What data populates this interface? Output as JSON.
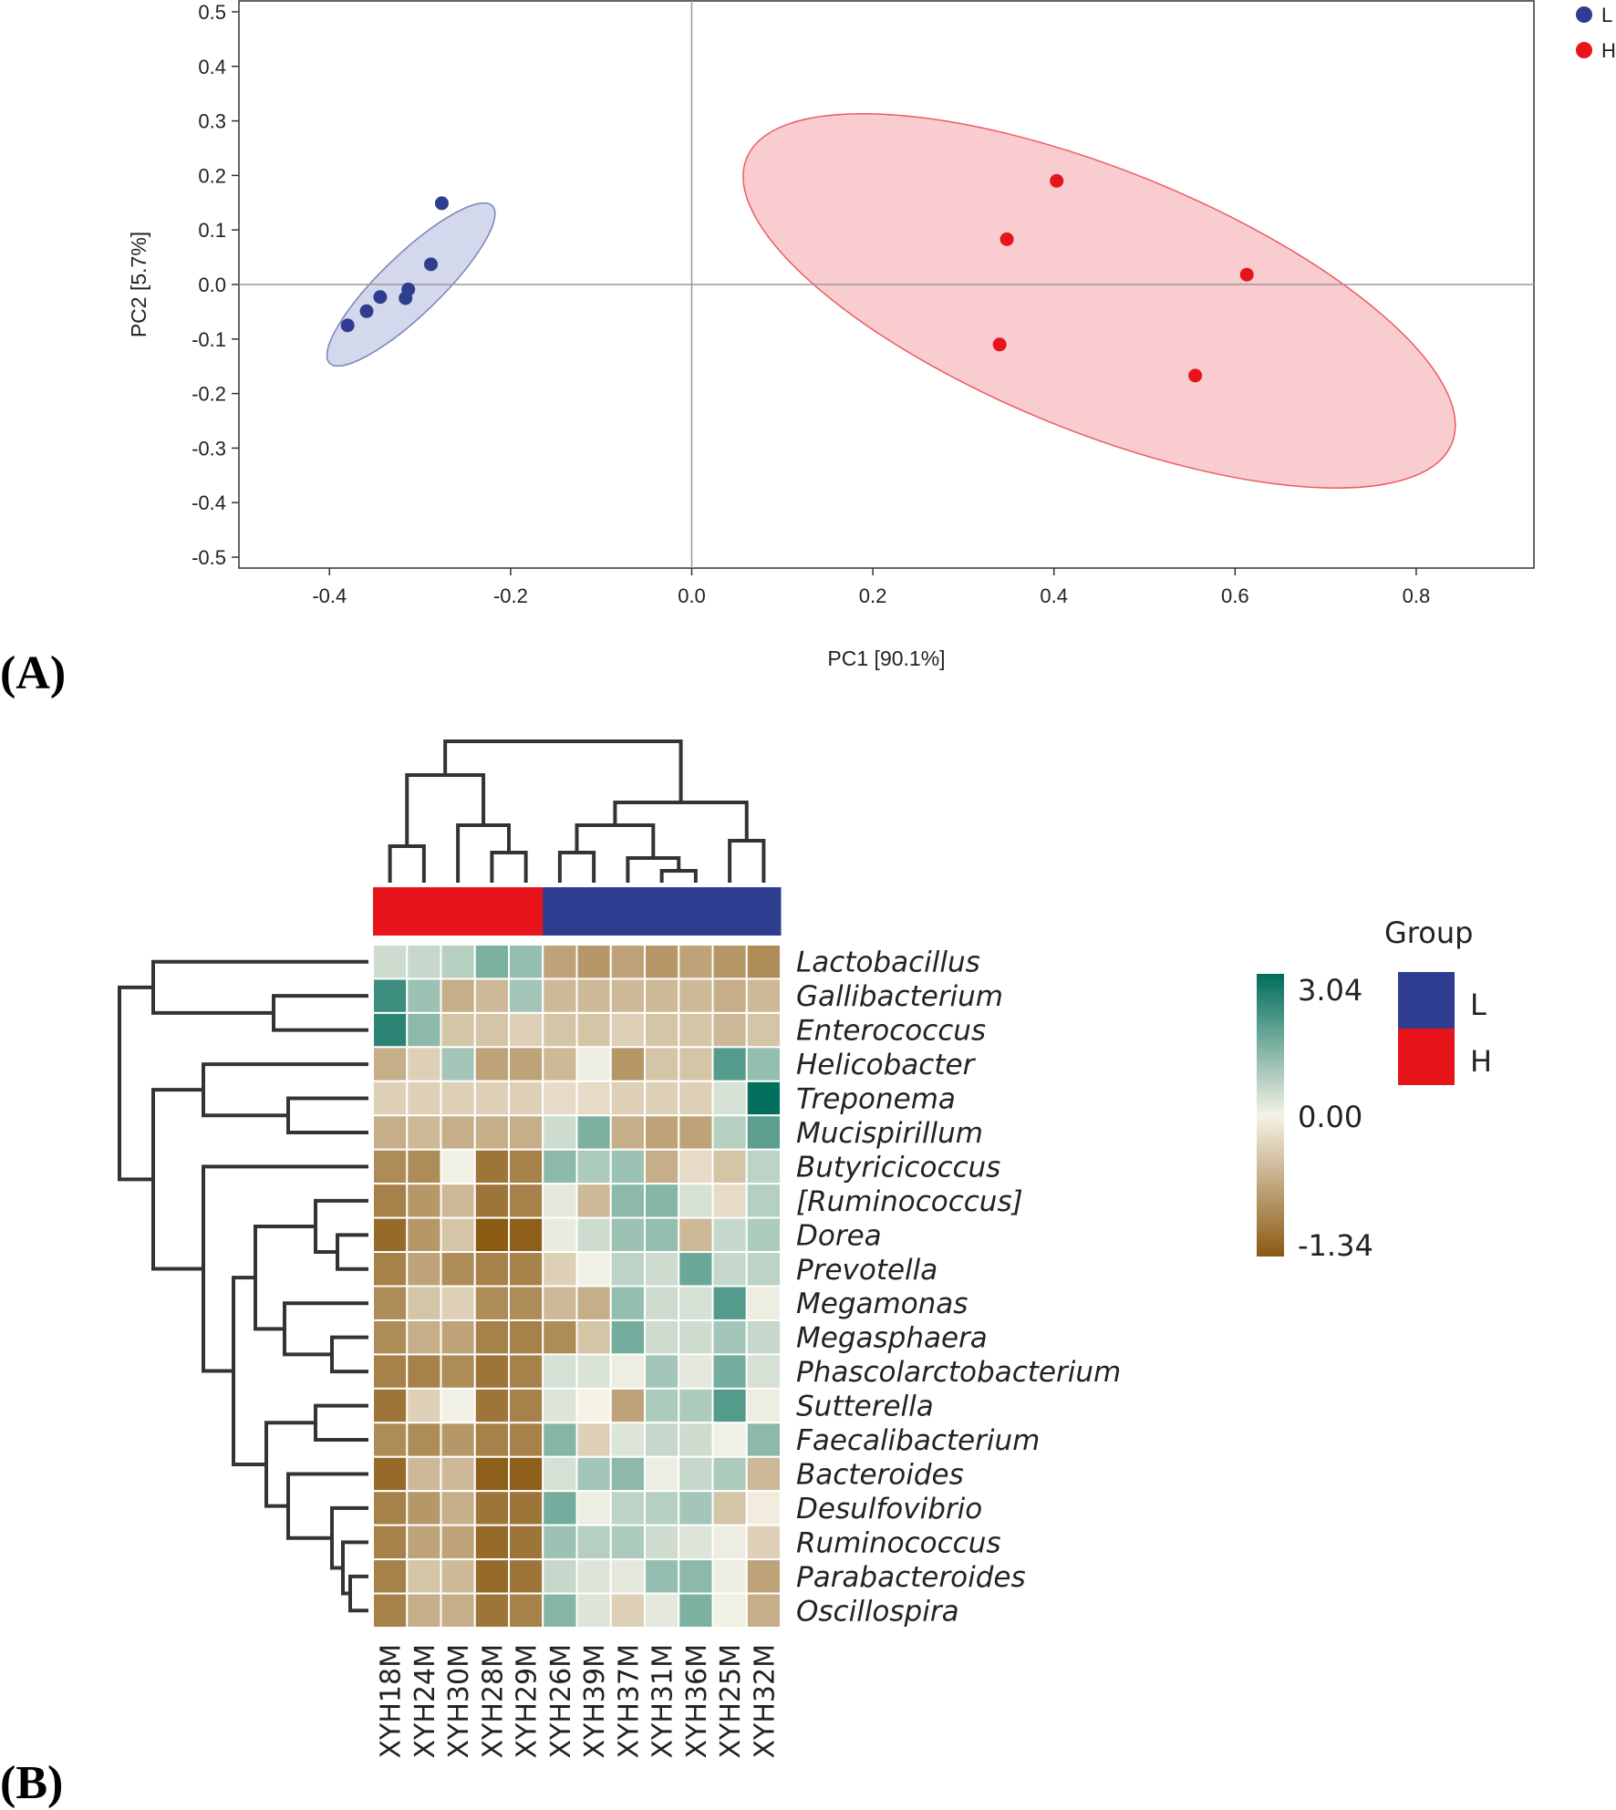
{
  "colors": {
    "L": "#2e3d8f",
    "H": "#e8141c",
    "L_fill": "#cfd4ea",
    "H_fill": "#f8c8ca",
    "heat_low": "#8b5a13",
    "heat_mid": "#f5f2e6",
    "heat_high": "#006d5b",
    "dendro": "#333333"
  },
  "chart_data": [
    {
      "type": "scatter",
      "panel_label": "(A)",
      "xlabel": "PC1 [90.1%]",
      "ylabel": "PC2 [5.7%]",
      "xlim": [
        -0.5,
        0.93
      ],
      "ylim": [
        -0.52,
        0.52
      ],
      "xticks": [
        -0.4,
        -0.2,
        0.0,
        0.2,
        0.4,
        0.6,
        0.8
      ],
      "xtick_labels": [
        "-0.4",
        "-0.2",
        "0.0",
        "0.2",
        "0.4",
        "0.6",
        "0.8"
      ],
      "yticks": [
        0.5,
        0.4,
        0.3,
        0.2,
        0.1,
        0.0,
        -0.1,
        -0.2,
        -0.3,
        -0.4,
        -0.5
      ],
      "ytick_labels": [
        "0.5",
        "0.4",
        "0.3",
        "0.2",
        "0.1",
        "0.0",
        "-0.1",
        "-0.2",
        "-0.3",
        "-0.4",
        "-0.5"
      ],
      "legend": [
        {
          "name": "L",
          "color_key": "L"
        },
        {
          "name": "H",
          "color_key": "H"
        }
      ],
      "series": [
        {
          "name": "L",
          "points": [
            [
              -0.276,
              0.149
            ],
            [
              -0.288,
              0.037
            ],
            [
              -0.313,
              -0.009
            ],
            [
              -0.316,
              -0.025
            ],
            [
              -0.344,
              -0.023
            ],
            [
              -0.359,
              -0.049
            ],
            [
              -0.38,
              -0.075
            ]
          ],
          "ellipse": {
            "cx": -0.31,
            "cy": 0.0,
            "rx": 0.125,
            "ry": 0.055,
            "angle_deg": 44
          }
        },
        {
          "name": "H",
          "points": [
            [
              0.403,
              0.19
            ],
            [
              0.348,
              0.083
            ],
            [
              0.613,
              0.018
            ],
            [
              0.34,
              -0.11
            ],
            [
              0.556,
              -0.167
            ]
          ],
          "ellipse": {
            "cx": 0.45,
            "cy": -0.03,
            "rx": 0.42,
            "ry": 0.24,
            "angle_deg": -22
          }
        }
      ]
    },
    {
      "type": "heatmap",
      "panel_label": "(B)",
      "rows": [
        "Lactobacillus",
        "Gallibacterium",
        "Enterococcus",
        "Helicobacter",
        "Treponema",
        "Mucispirillum",
        "Butyricicoccus",
        "[Ruminococcus]",
        "Dorea",
        "Prevotella",
        "Megamonas",
        "Megasphaera",
        "Phascolarctobacterium",
        "Sutterella",
        "Faecalibacterium",
        "Bacteroides",
        "Desulfovibrio",
        "Ruminococcus",
        "Parabacteroides",
        "Oscillospira"
      ],
      "columns": [
        "XYH18M",
        "XYH24M",
        "XYH30M",
        "XYH28M",
        "XYH29M",
        "XYH26M",
        "XYH39M",
        "XYH37M",
        "XYH31M",
        "XYH36M",
        "XYH25M",
        "XYH32M"
      ],
      "column_groups": [
        "H",
        "H",
        "H",
        "H",
        "H",
        "L",
        "L",
        "L",
        "L",
        "L",
        "L",
        "L"
      ],
      "color_scale": {
        "min": -1.34,
        "mid": 0.0,
        "max": 3.04,
        "labels": [
          "3.04",
          "0.00",
          "-1.34"
        ]
      },
      "legend_title": "Group",
      "legend_groups": [
        {
          "name": "L",
          "color_key": "L"
        },
        {
          "name": "H",
          "color_key": "H"
        }
      ],
      "values": [
        [
          0.5,
          0.6,
          0.8,
          1.5,
          1.2,
          -0.7,
          -0.8,
          -0.7,
          -0.8,
          -0.7,
          -0.8,
          -0.9
        ],
        [
          2.3,
          1.1,
          -0.6,
          -0.5,
          1.0,
          -0.5,
          -0.5,
          -0.5,
          -0.5,
          -0.5,
          -0.6,
          -0.5
        ],
        [
          2.5,
          1.3,
          -0.4,
          -0.4,
          -0.3,
          -0.4,
          -0.4,
          -0.3,
          -0.4,
          -0.4,
          -0.5,
          -0.4
        ],
        [
          -0.6,
          -0.3,
          1.0,
          -0.7,
          -0.7,
          -0.5,
          0.1,
          -0.8,
          -0.4,
          -0.4,
          2.0,
          1.2
        ],
        [
          -0.3,
          -0.3,
          -0.3,
          -0.3,
          -0.3,
          -0.2,
          -0.2,
          -0.3,
          -0.3,
          -0.3,
          0.4,
          3.0
        ],
        [
          -0.6,
          -0.5,
          -0.6,
          -0.6,
          -0.6,
          0.5,
          1.5,
          -0.6,
          -0.7,
          -0.7,
          0.8,
          1.9
        ],
        [
          -0.9,
          -0.9,
          0.05,
          -1.1,
          -1.0,
          1.3,
          0.9,
          1.1,
          -0.6,
          -0.2,
          -0.4,
          0.7
        ],
        [
          -1.0,
          -0.8,
          -0.5,
          -1.1,
          -1.0,
          0.2,
          -0.5,
          1.3,
          1.4,
          0.4,
          -0.2,
          0.8
        ],
        [
          -1.2,
          -0.8,
          -0.4,
          -1.34,
          -1.3,
          0.15,
          0.5,
          1.1,
          1.2,
          -0.5,
          0.6,
          0.9
        ],
        [
          -1.0,
          -0.7,
          -0.9,
          -1.0,
          -1.0,
          -0.3,
          0.05,
          0.7,
          0.5,
          1.7,
          0.6,
          0.7
        ],
        [
          -0.9,
          -0.4,
          -0.3,
          -0.9,
          -0.9,
          -0.5,
          -0.6,
          1.2,
          0.5,
          0.4,
          2.0,
          0.1
        ],
        [
          -0.9,
          -0.6,
          -0.7,
          -1.0,
          -1.0,
          -0.9,
          -0.4,
          1.6,
          0.5,
          0.5,
          1.0,
          0.6
        ],
        [
          -1.0,
          -1.0,
          -0.9,
          -1.1,
          -1.0,
          0.4,
          0.35,
          0.1,
          1.0,
          0.2,
          1.6,
          0.4
        ],
        [
          -1.1,
          -0.3,
          0.05,
          -1.1,
          -1.0,
          0.3,
          0.0,
          -0.7,
          0.9,
          0.9,
          2.0,
          0.1
        ],
        [
          -0.9,
          -0.9,
          -0.8,
          -1.0,
          -1.0,
          1.4,
          -0.3,
          0.3,
          0.6,
          0.5,
          0.05,
          1.3
        ],
        [
          -1.2,
          -0.5,
          -0.5,
          -1.3,
          -1.3,
          0.4,
          1.0,
          1.3,
          0.1,
          0.6,
          0.9,
          -0.5
        ],
        [
          -1.0,
          -0.8,
          -0.6,
          -1.1,
          -1.1,
          1.6,
          0.1,
          0.7,
          0.8,
          1.0,
          -0.4,
          -0.05
        ],
        [
          -1.0,
          -0.7,
          -0.7,
          -1.2,
          -1.1,
          1.1,
          0.8,
          0.9,
          0.5,
          0.3,
          0.1,
          -0.3
        ],
        [
          -1.0,
          -0.4,
          -0.5,
          -1.2,
          -1.1,
          0.6,
          0.3,
          0.2,
          1.2,
          1.3,
          0.1,
          -0.7
        ],
        [
          -1.0,
          -0.6,
          -0.6,
          -1.1,
          -1.0,
          1.4,
          0.3,
          -0.3,
          0.2,
          1.5,
          0.05,
          -0.6
        ]
      ]
    }
  ]
}
